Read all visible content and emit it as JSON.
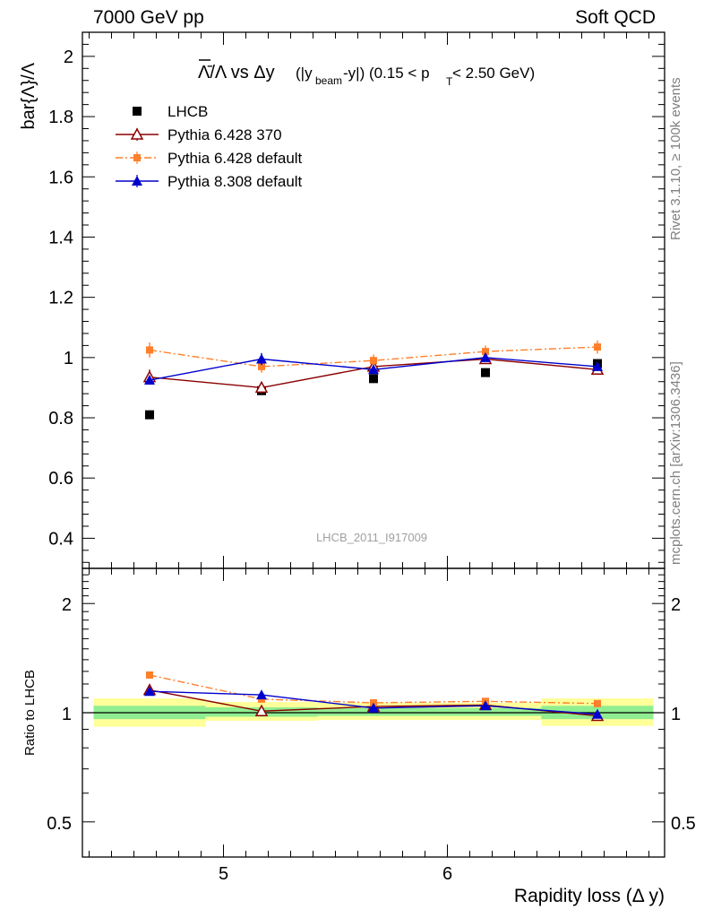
{
  "header": {
    "left": "7000 GeV pp",
    "right": "Soft QCD"
  },
  "side": {
    "rivet": "Rivet 3.1.10, ≥ 100k events",
    "mcplots": "mcplots.cern.ch [arXiv:1306.3436]"
  },
  "watermark": "LHCB_2011_I917009",
  "colors": {
    "data": "#000000",
    "pythia6_370": "#8b0000",
    "pythia6_default": "#ff7f2a",
    "pythia8": "#0000cc",
    "band_inner": "#90ee90",
    "band_outer": "#ffff99"
  },
  "chart_data": [
    {
      "type": "scatter",
      "title": "Λ̄/Λ vs Δy (|y_beam-y|) (0.15 < p_T < 2.50 GeV)",
      "title_parts": {
        "main": "Λ̄/Λ vs Δy",
        "paren_open": "(|y",
        "beam_sub": "beam",
        "paren_close": "-y|) (0.15 < p",
        "t_sub": "T",
        "tail": " < 2.50 GeV)"
      },
      "ylabel": "bar{Λ}/Λ",
      "xlabel": "",
      "xlim": [
        4.37,
        6.97
      ],
      "ylim": [
        0.3,
        2.08
      ],
      "yticks": [
        0.4,
        0.6,
        0.8,
        1.0,
        1.2,
        1.4,
        1.6,
        1.8,
        2.0
      ],
      "ytick_labels": [
        "0.4",
        "0.6",
        "0.8",
        "1",
        "1.2",
        "1.4",
        "1.6",
        "1.8",
        "2"
      ],
      "legend_position": "top-left",
      "series": [
        {
          "name": "LHCB",
          "marker": "square",
          "x": [
            4.67,
            5.17,
            5.67,
            6.17,
            6.67
          ],
          "y": [
            0.81,
            0.89,
            0.93,
            0.95,
            0.98
          ],
          "yerr": [
            0.0,
            0.0,
            0.0,
            0.0,
            0.0
          ]
        },
        {
          "name": "Pythia 6.428 370",
          "marker": "open-triangle",
          "line": "solid",
          "x": [
            4.67,
            5.17,
            5.67,
            6.17,
            6.67
          ],
          "y": [
            0.935,
            0.9,
            0.97,
            0.995,
            0.96
          ],
          "yerr": [
            0.025,
            0.02,
            0.015,
            0.015,
            0.012
          ]
        },
        {
          "name": "Pythia 6.428 default",
          "marker": "small-square",
          "line": "dashdot",
          "x": [
            4.67,
            5.17,
            5.67,
            6.17,
            6.67
          ],
          "y": [
            1.025,
            0.97,
            0.99,
            1.02,
            1.035
          ],
          "yerr": [
            0.025,
            0.02,
            0.02,
            0.02,
            0.022
          ]
        },
        {
          "name": "Pythia 8.308 default",
          "marker": "triangle",
          "line": "solid",
          "x": [
            4.67,
            5.17,
            5.67,
            6.17,
            6.67
          ],
          "y": [
            0.925,
            0.995,
            0.96,
            1.0,
            0.97
          ],
          "yerr": [
            0.015,
            0.02,
            0.012,
            0.012,
            0.01
          ]
        }
      ]
    },
    {
      "type": "scatter",
      "ylabel": "Ratio to LHCB",
      "xlabel": "Rapidity loss (Δ y)",
      "xlim": [
        4.37,
        6.97
      ],
      "ylim": [
        0.4,
        2.5
      ],
      "log_y": true,
      "yticks": [
        0.5,
        1,
        2
      ],
      "ytick_labels": [
        "0.5",
        "1",
        "2"
      ],
      "xticks": [
        5,
        6
      ],
      "xtick_labels": [
        "5",
        "6"
      ],
      "reference_line": 1,
      "bands": [
        {
          "x_low": 4.42,
          "x_high": 4.92,
          "outer": [
            0.915,
            1.095
          ],
          "inner": [
            0.96,
            1.045
          ]
        },
        {
          "x_low": 4.92,
          "x_high": 5.42,
          "outer": [
            0.95,
            1.07
          ],
          "inner": [
            0.975,
            1.035
          ]
        },
        {
          "x_low": 5.42,
          "x_high": 5.92,
          "outer": [
            0.955,
            1.065
          ],
          "inner": [
            0.98,
            1.03
          ]
        },
        {
          "x_low": 5.92,
          "x_high": 6.42,
          "outer": [
            0.955,
            1.065
          ],
          "inner": [
            0.98,
            1.03
          ]
        },
        {
          "x_low": 6.42,
          "x_high": 6.92,
          "outer": [
            0.92,
            1.095
          ],
          "inner": [
            0.96,
            1.045
          ]
        }
      ],
      "series": [
        {
          "name": "Pythia 6.428 370",
          "x": [
            4.67,
            5.17,
            5.67,
            6.17,
            6.67
          ],
          "y": [
            1.155,
            1.01,
            1.04,
            1.05,
            0.98
          ],
          "yerr": [
            0.02,
            0.02,
            0.015,
            0.015,
            0.012
          ]
        },
        {
          "name": "Pythia 6.428 default",
          "x": [
            4.67,
            5.17,
            5.67,
            6.17,
            6.67
          ],
          "y": [
            1.27,
            1.09,
            1.065,
            1.075,
            1.06
          ],
          "yerr": [
            0.025,
            0.02,
            0.02,
            0.02,
            0.02
          ]
        },
        {
          "name": "Pythia 8.308 default",
          "x": [
            4.67,
            5.17,
            5.67,
            6.17,
            6.67
          ],
          "y": [
            1.145,
            1.12,
            1.03,
            1.045,
            0.99
          ],
          "yerr": [
            0.02,
            0.02,
            0.015,
            0.015,
            0.012
          ]
        }
      ]
    }
  ]
}
